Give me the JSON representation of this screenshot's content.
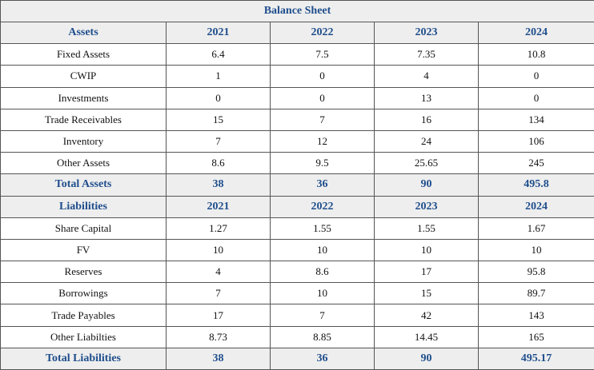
{
  "title": "Balance Sheet",
  "years": [
    "2021",
    "2022",
    "2023",
    "2024"
  ],
  "assets": {
    "header": "Assets",
    "rows": [
      {
        "label": "Fixed Assets",
        "values": [
          "6.4",
          "7.5",
          "7.35",
          "10.8"
        ]
      },
      {
        "label": "CWIP",
        "values": [
          "1",
          "0",
          "4",
          "0"
        ]
      },
      {
        "label": "Investments",
        "values": [
          "0",
          "0",
          "13",
          "0"
        ]
      },
      {
        "label": "Trade Receivables",
        "values": [
          "15",
          "7",
          "16",
          "134"
        ]
      },
      {
        "label": "Inventory",
        "values": [
          "7",
          "12",
          "24",
          "106"
        ]
      },
      {
        "label": "Other Assets",
        "values": [
          "8.6",
          "9.5",
          "25.65",
          "245"
        ]
      }
    ],
    "total": {
      "label": "Total Assets",
      "values": [
        "38",
        "36",
        "90",
        "495.8"
      ]
    }
  },
  "liabilities": {
    "header": "Liabilities",
    "rows": [
      {
        "label": "Share Capital",
        "values": [
          "1.27",
          "1.55",
          "1.55",
          "1.67"
        ]
      },
      {
        "label": "FV",
        "values": [
          "10",
          "10",
          "10",
          "10"
        ]
      },
      {
        "label": "Reserves",
        "values": [
          "4",
          "8.6",
          "17",
          "95.8"
        ]
      },
      {
        "label": "Borrowings",
        "values": [
          "7",
          "10",
          "15",
          "89.7"
        ]
      },
      {
        "label": "Trade Payables",
        "values": [
          "17",
          "7",
          "42",
          "143"
        ]
      },
      {
        "label": "Other Liabilties",
        "values": [
          "8.73",
          "8.85",
          "14.45",
          "165"
        ]
      }
    ],
    "total": {
      "label": "Total Liabilities",
      "values": [
        "38",
        "36",
        "90",
        "495.17"
      ]
    }
  },
  "colors": {
    "header_text": "#1f4e8c",
    "header_bg": "#eeeeee",
    "border": "#555555"
  }
}
